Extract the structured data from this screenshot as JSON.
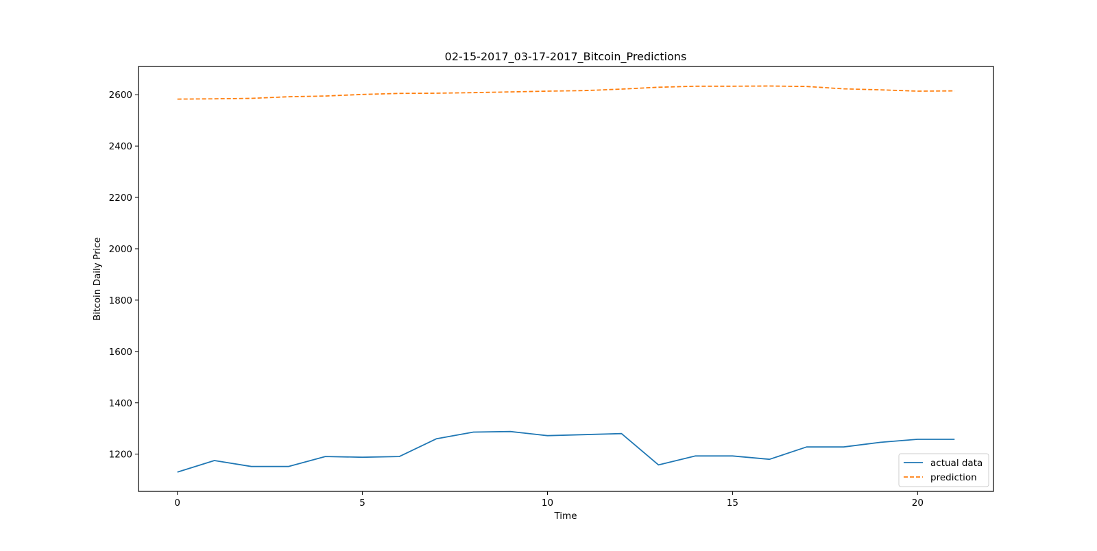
{
  "chart_data": {
    "type": "line",
    "title": "02-15-2017_03-17-2017_Bitcoin_Predictions",
    "xlabel": "Time",
    "ylabel": "Bitcoin Daily Price",
    "xlim": [
      -1.05,
      22.05
    ],
    "ylim": [
      1055,
      2710
    ],
    "xticks": [
      0,
      5,
      10,
      15,
      20
    ],
    "yticks": [
      1200,
      1400,
      1600,
      1800,
      2000,
      2200,
      2400,
      2600
    ],
    "grid": false,
    "legend_position": "lower right",
    "x": [
      0,
      1,
      2,
      3,
      4,
      5,
      6,
      7,
      8,
      9,
      10,
      11,
      12,
      13,
      14,
      15,
      16,
      17,
      18,
      19,
      20,
      21
    ],
    "series": [
      {
        "name": "actual data",
        "color": "#1f77b4",
        "style": "solid",
        "values": [
          1130,
          1175,
          1152,
          1152,
          1191,
          1188,
          1191,
          1260,
          1286,
          1288,
          1272,
          1276,
          1280,
          1158,
          1193,
          1193,
          1180,
          1228,
          1228,
          1246,
          1258,
          1258
        ]
      },
      {
        "name": "prediction",
        "color": "#ff7f0e",
        "style": "dashed",
        "values": [
          2583,
          2584,
          2586,
          2592,
          2595,
          2601,
          2605,
          2606,
          2608,
          2611,
          2614,
          2616,
          2622,
          2629,
          2633,
          2633,
          2634,
          2632,
          2623,
          2619,
          2614,
          2615
        ]
      }
    ]
  }
}
